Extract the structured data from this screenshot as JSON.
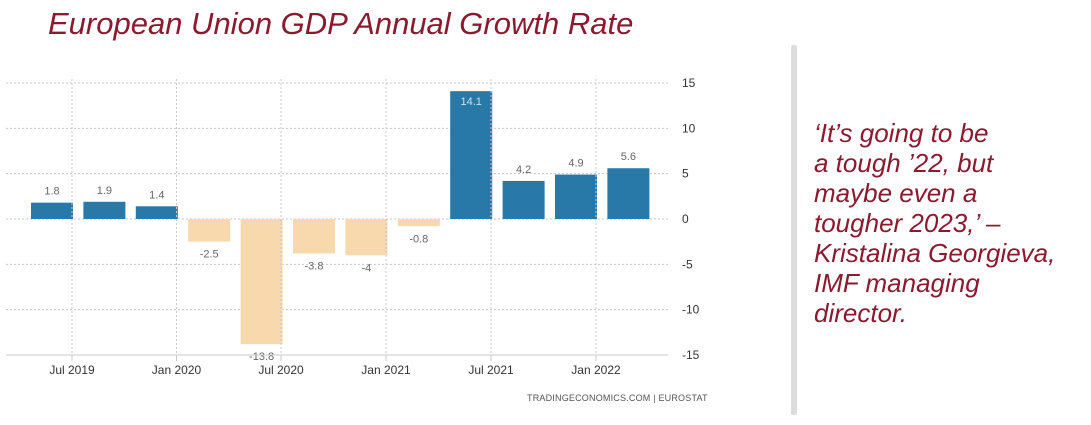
{
  "title": "European Union GDP Annual Growth Rate",
  "source": "TRADINGECONOMICS.COM  |  EUROSTAT",
  "quote": "‘It’s going to be\na tough ’22, but\nmaybe even a\ntougher 2023,’ –\nKristalina Georgieva,\nIMF managing\ndirector.",
  "colors": {
    "title": "#8b1a2e",
    "positive_bar": "#2878a8",
    "negative_bar": "#f8d9ad",
    "grid": "#c8c8c8",
    "axis_text": "#333333",
    "value_label": "#666666"
  },
  "chart_data": {
    "type": "bar",
    "categories": [
      "2019-Q2",
      "2019-Q3",
      "2019-Q4",
      "2020-Q1",
      "2020-Q2",
      "2020-Q3",
      "2020-Q4",
      "2021-Q1",
      "2021-Q2",
      "2021-Q3",
      "2021-Q4",
      "2022-Q1"
    ],
    "values": [
      1.8,
      1.9,
      1.4,
      -2.5,
      -13.8,
      -3.8,
      -4,
      -0.8,
      14.1,
      4.2,
      4.9,
      5.6
    ],
    "value_labels": [
      "1.8",
      "1.9",
      "1.4",
      "-2.5",
      "-13.8",
      "-3.8",
      "-4",
      "-0.8",
      "14.1",
      "4.2",
      "4.9",
      "5.6"
    ],
    "x_ticks": [
      "Jul 2019",
      "Jan 2020",
      "Jul 2020",
      "Jan 2021",
      "Jul 2021",
      "Jan 2022"
    ],
    "y_ticks": [
      "15",
      "10",
      "5",
      "0",
      "-5",
      "-10",
      "-15"
    ],
    "ylim": [
      -15,
      15
    ],
    "grid": true,
    "y_axis_side": "right",
    "legend": "none"
  }
}
